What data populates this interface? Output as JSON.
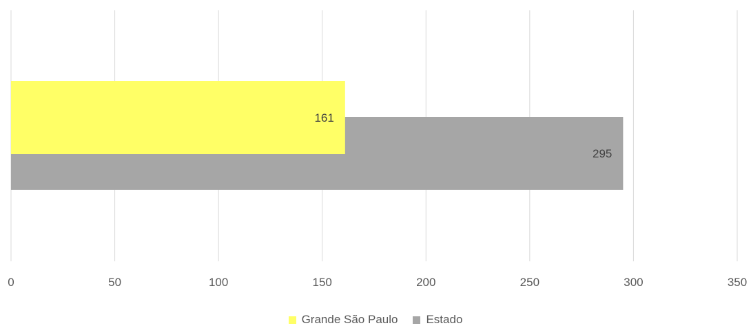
{
  "chart_data": {
    "type": "bar",
    "orientation": "horizontal",
    "xlim": [
      0,
      350
    ],
    "xticks": [
      0,
      50,
      100,
      150,
      200,
      250,
      300,
      350
    ],
    "grid": true,
    "legend_position": "bottom",
    "series": [
      {
        "name": "Grande São Paulo",
        "value": 161,
        "label": "161",
        "color": "#FFFF66"
      },
      {
        "name": "Estado",
        "value": 295,
        "label": "295",
        "color": "#A6A6A6"
      }
    ]
  }
}
